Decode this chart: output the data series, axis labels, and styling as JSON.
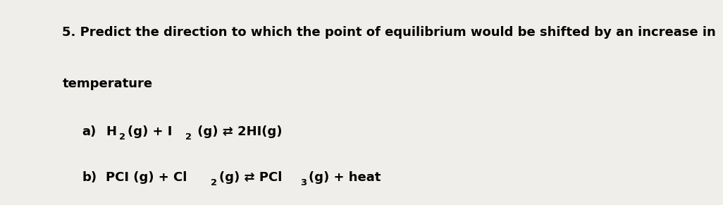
{
  "background_color": "#f0eeeb",
  "text_color": "#000000",
  "title_line1": "5. Predict the direction to which the point of equilibrium would be shifted by an increase in",
  "title_line2": "temperature",
  "font_size_main": 13,
  "font_family": "DejaVu Sans"
}
